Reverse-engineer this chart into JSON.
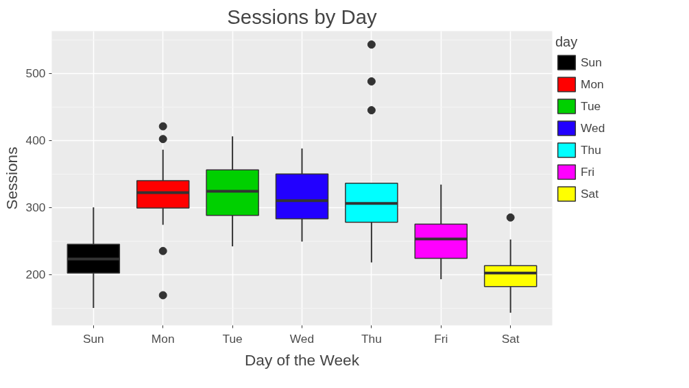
{
  "chart_data": {
    "type": "box",
    "title": "Sessions by Day",
    "xlabel": "Day of the Week",
    "ylabel": "Sessions",
    "legend_title": "day",
    "legend": "right",
    "grid": true,
    "categories": [
      "Sun",
      "Mon",
      "Tue",
      "Wed",
      "Thu",
      "Fri",
      "Sat"
    ],
    "ylim": [
      124,
      563
    ],
    "yticks": [
      200,
      300,
      400,
      500
    ],
    "series": [
      {
        "name": "Sun",
        "color": "#000000",
        "boxes": [
          {
            "low": 150,
            "q1": 202,
            "median": 223,
            "q3": 245,
            "high": 300
          },
          null,
          null,
          null,
          null,
          null,
          null
        ]
      },
      {
        "name": "Mon",
        "color": "#ff0000",
        "boxes": [
          null,
          {
            "low": 274,
            "q1": 299,
            "median": 322,
            "q3": 340,
            "high": 386,
            "outliers": [
              421,
              402,
              235,
              169
            ]
          },
          null,
          null,
          null,
          null,
          null
        ]
      },
      {
        "name": "Tue",
        "color": "#00d000",
        "boxes": [
          null,
          null,
          {
            "low": 242,
            "q1": 288,
            "median": 324,
            "q3": 356,
            "high": 406
          },
          null,
          null,
          null,
          null
        ]
      },
      {
        "name": "Wed",
        "color": "#2200ff",
        "boxes": [
          null,
          null,
          null,
          {
            "low": 249,
            "q1": 283,
            "median": 310,
            "q3": 350,
            "high": 388
          },
          null,
          null,
          null
        ]
      },
      {
        "name": "Thu",
        "color": "#00ffff",
        "boxes": [
          null,
          null,
          null,
          null,
          {
            "low": 218,
            "q1": 278,
            "median": 306,
            "q3": 336,
            "high": 336,
            "outliers": [
              543,
              488,
              445
            ]
          },
          null,
          null
        ]
      },
      {
        "name": "Fri",
        "color": "#ff00ff",
        "boxes": [
          null,
          null,
          null,
          null,
          null,
          {
            "low": 193,
            "q1": 224,
            "median": 253,
            "q3": 275,
            "high": 334
          },
          null
        ]
      },
      {
        "name": "Sat",
        "color": "#ffff00",
        "boxes": [
          null,
          null,
          null,
          null,
          null,
          null,
          {
            "low": 143,
            "q1": 182,
            "median": 202,
            "q3": 213,
            "high": 252,
            "outliers": [
              285
            ]
          }
        ]
      }
    ]
  }
}
